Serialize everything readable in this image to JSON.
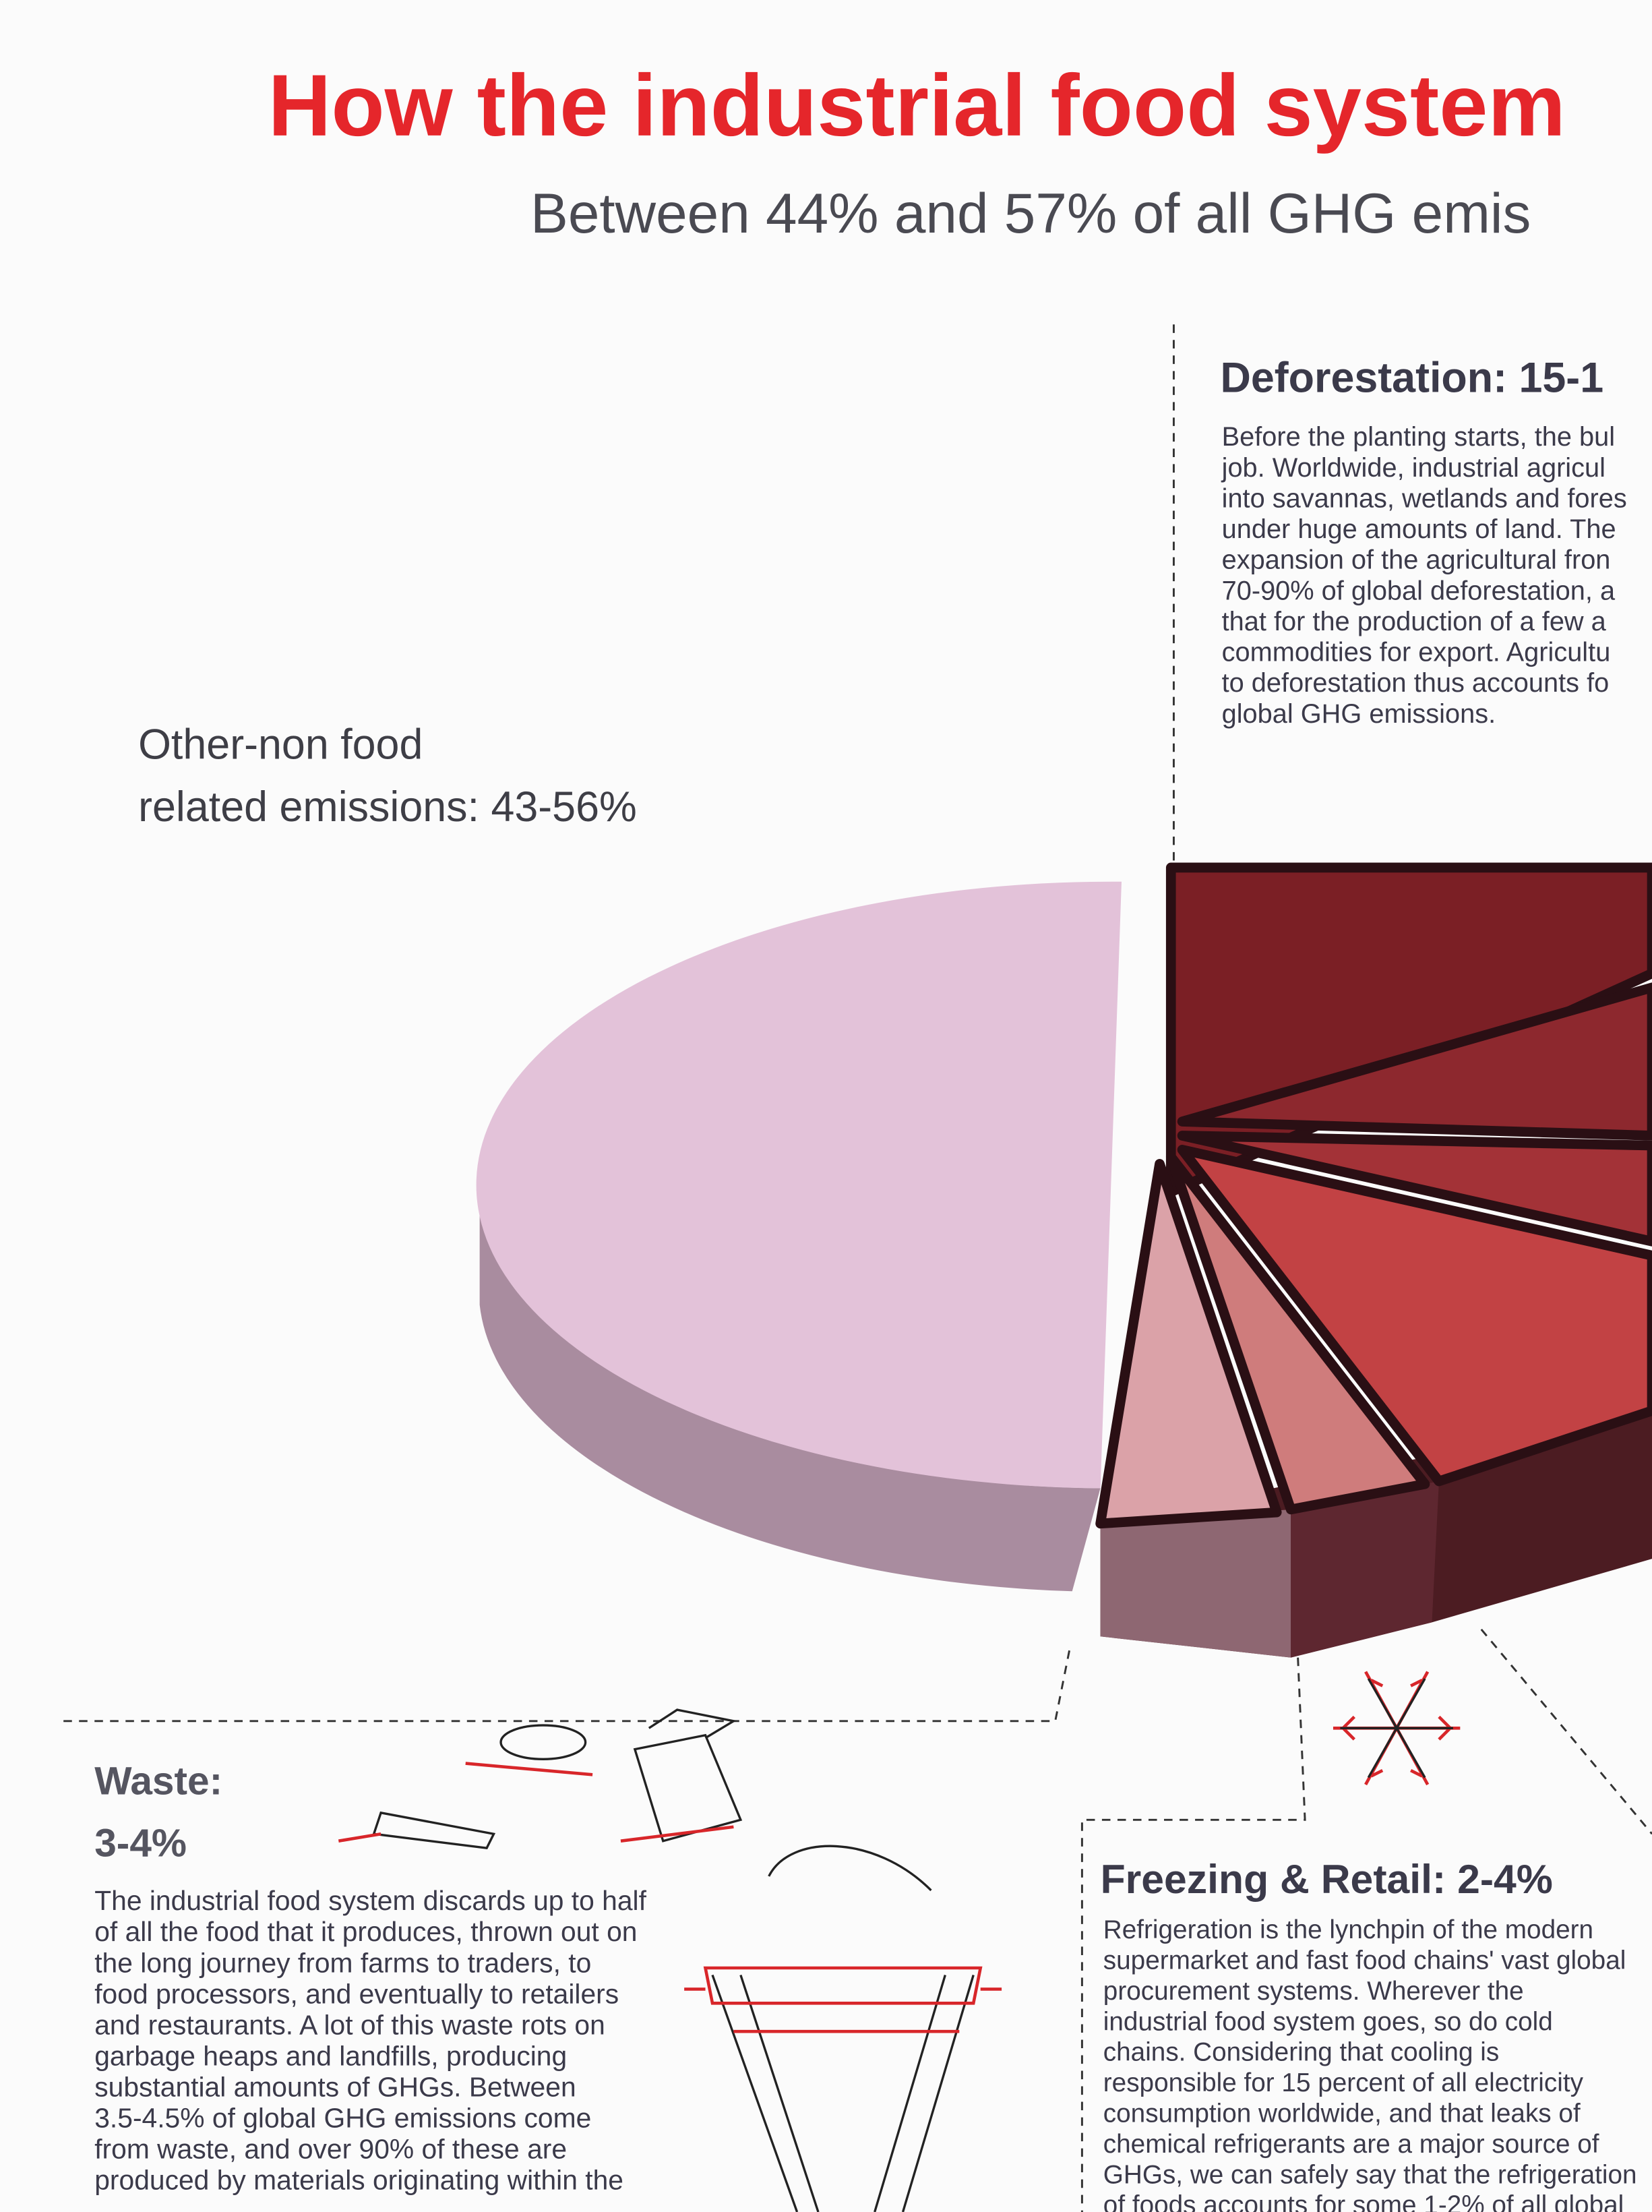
{
  "header": {
    "title": "How the industrial food system",
    "subtitle": "Between 44% and 57% of all GHG emis"
  },
  "other": {
    "lines": [
      "Other-non food",
      "related emissions: 43-56%"
    ]
  },
  "deforestation": {
    "heading": "Deforestation: 15-1",
    "lines": [
      "Before the planting starts, the bul",
      "job. Worldwide, industrial agricul",
      "into savannas, wetlands and fores",
      "under huge amounts of land. The",
      "expansion of the agricultural fron",
      "70-90% of global deforestation, a",
      "that for the production of a few a",
      "commodities for export. Agricultu",
      "to deforestation thus accounts fo",
      "global GHG emissions."
    ]
  },
  "waste": {
    "heading": [
      "Waste:",
      "3-4%"
    ],
    "lines": [
      "The industrial food system discards up to half",
      "of all the food that it produces, thrown out on",
      "the long journey from farms to traders, to",
      "food processors, and eventually to retailers",
      "and restaurants. A lot of this waste rots on",
      "garbage heaps and landfills, producing",
      "substantial amounts of GHGs. Between",
      "3.5-4.5% of global GHG emissions come",
      "from waste, and over 90% of these are",
      "produced by materials originating within the"
    ]
  },
  "freezing": {
    "heading": "Freezing & Retail: 2-4%",
    "lines": [
      "Refrigeration is the lynchpin of the modern",
      "supermarket and fast food chains' vast global",
      "procurement systems. Wherever the",
      "industrial food system goes, so do cold",
      "chains. Considering that cooling is",
      "responsible for 15 percent of all electricity",
      "consumption worldwide, and that leaks of",
      "chemical refrigerants are a major source of",
      "GHGs, we can safely say that the refrigeration",
      "of foods accounts for some 1-2% of all global"
    ]
  }
}
